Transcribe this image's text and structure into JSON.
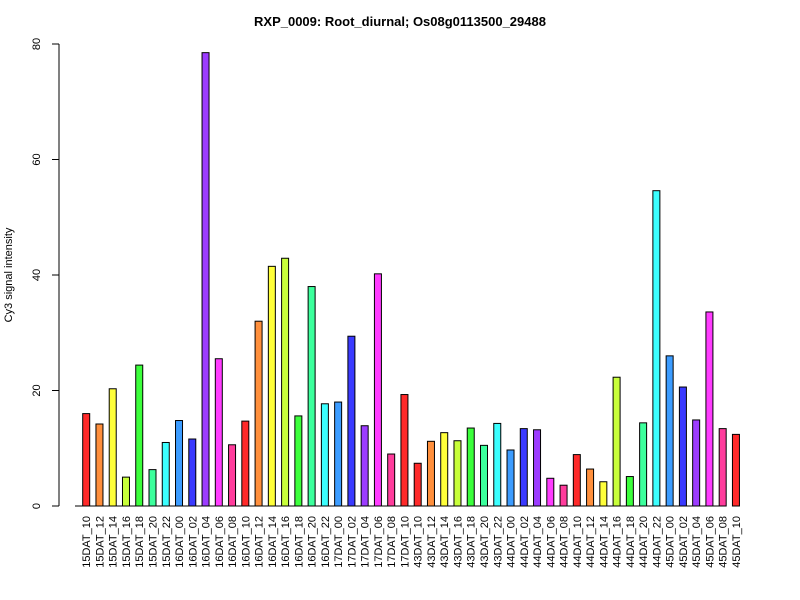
{
  "chart_data": {
    "type": "bar",
    "title": "RXP_0009: Root_diurnal; Os08g0113500_29488",
    "xlabel": "",
    "ylabel": "Cy3 signal intensity",
    "ylim": [
      0,
      80
    ],
    "yticks": [
      0,
      20,
      40,
      60,
      80
    ],
    "grid": false,
    "categories": [
      "15DAT_10",
      "15DAT_12",
      "15DAT_14",
      "15DAT_16",
      "15DAT_18",
      "15DAT_20",
      "15DAT_22",
      "16DAT_00",
      "16DAT_02",
      "16DAT_04",
      "16DAT_06",
      "16DAT_08",
      "16DAT_10",
      "16DAT_12",
      "16DAT_14",
      "16DAT_16",
      "16DAT_18",
      "16DAT_20",
      "16DAT_22",
      "17DAT_00",
      "17DAT_02",
      "17DAT_04",
      "17DAT_06",
      "17DAT_08",
      "17DAT_10",
      "43DAT_10",
      "43DAT_12",
      "43DAT_14",
      "43DAT_16",
      "43DAT_18",
      "43DAT_20",
      "43DAT_22",
      "44DAT_00",
      "44DAT_02",
      "44DAT_04",
      "44DAT_06",
      "44DAT_08",
      "44DAT_10",
      "44DAT_12",
      "44DAT_14",
      "44DAT_16",
      "44DAT_18",
      "44DAT_20",
      "44DAT_22",
      "45DAT_00",
      "45DAT_02",
      "45DAT_04",
      "45DAT_06",
      "45DAT_08",
      "45DAT_10"
    ],
    "values": [
      16.0,
      14.2,
      20.3,
      5.0,
      24.4,
      6.3,
      11.0,
      14.8,
      11.6,
      78.5,
      25.5,
      10.6,
      14.7,
      32.0,
      41.5,
      42.9,
      15.6,
      38.0,
      17.7,
      18.0,
      29.4,
      13.9,
      40.2,
      9.0,
      19.3,
      7.4,
      11.2,
      12.7,
      11.3,
      13.5,
      10.5,
      14.3,
      9.7,
      13.4,
      13.2,
      4.8,
      3.6,
      8.9,
      6.4,
      4.2,
      22.3,
      5.1,
      14.4,
      54.6,
      26.0,
      20.6,
      14.9,
      33.6,
      13.4,
      12.4
    ],
    "colors": [
      "#ff2a2a",
      "#ff8f3c",
      "#ffff3a",
      "#c8ff3a",
      "#3cff3c",
      "#3cff9c",
      "#3cffff",
      "#3c9cff",
      "#3a3aff",
      "#9c3cff",
      "#ff3cff",
      "#ff3c9c",
      "#ff2a2a",
      "#ff8f3c",
      "#ffff3a",
      "#c8ff3a",
      "#3cff3c",
      "#3cff9c",
      "#3cffff",
      "#3c9cff",
      "#3a3aff",
      "#9c3cff",
      "#ff3cff",
      "#ff3c9c",
      "#ff2a2a",
      "#ff2a2a",
      "#ff8f3c",
      "#ffff3a",
      "#c8ff3a",
      "#3cff3c",
      "#3cff9c",
      "#3cffff",
      "#3c9cff",
      "#3a3aff",
      "#9c3cff",
      "#ff3cff",
      "#ff3c9c",
      "#ff2a2a",
      "#ff8f3c",
      "#ffff3a",
      "#c8ff3a",
      "#3cff3c",
      "#3cff9c",
      "#3cffff",
      "#3c9cff",
      "#3a3aff",
      "#9c3cff",
      "#ff3cff",
      "#ff3c9c",
      "#ff2a2a"
    ]
  }
}
